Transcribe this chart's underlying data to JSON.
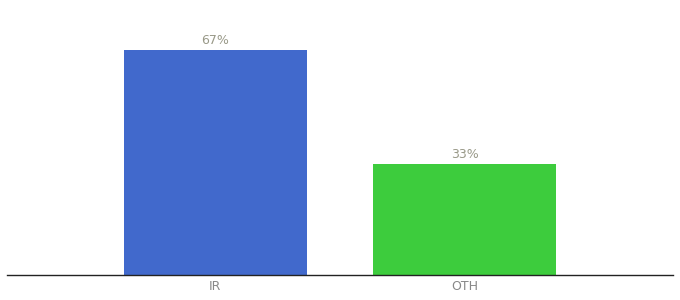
{
  "categories": [
    "IR",
    "OTH"
  ],
  "values": [
    67,
    33
  ],
  "bar_colors": [
    "#4169cc",
    "#3dcc3d"
  ],
  "label_texts": [
    "67%",
    "33%"
  ],
  "background_color": "#ffffff",
  "text_color": "#999988",
  "label_fontsize": 9,
  "tick_fontsize": 9,
  "ylim": [
    0,
    80
  ],
  "bar_width": 0.22,
  "figsize": [
    6.8,
    3.0
  ],
  "dpi": 100,
  "x_positions": [
    0.35,
    0.65
  ],
  "xlim": [
    0.1,
    0.9
  ]
}
